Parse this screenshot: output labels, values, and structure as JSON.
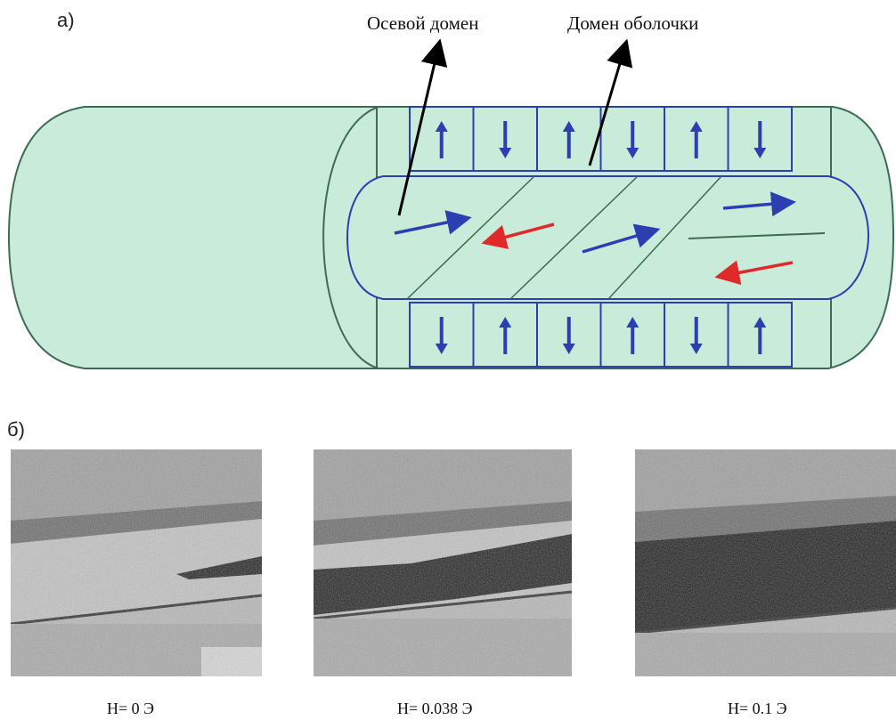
{
  "panel_a": {
    "label": "а)",
    "callout_axial": "Осевой домен",
    "callout_shell": "Домен оболочки",
    "shell_domains_top": [
      "up",
      "down",
      "up",
      "down",
      "up",
      "down"
    ],
    "shell_domains_bottom": [
      "down",
      "up",
      "down",
      "up",
      "down",
      "up"
    ],
    "colors": {
      "wire_fill": "#c8ecd9",
      "wire_outline": "#3f6b55",
      "domain_border": "#2b3fb0",
      "arrow_blue": "#2b3fb0",
      "arrow_red": "#e02a2a",
      "wall_line": "#3c6b4f"
    }
  },
  "panel_b": {
    "label": "б)",
    "images": [
      {
        "caption": "H= 0 Э"
      },
      {
        "caption": "H= 0.038 Э"
      },
      {
        "caption": "H= 0.1 Э"
      }
    ]
  }
}
